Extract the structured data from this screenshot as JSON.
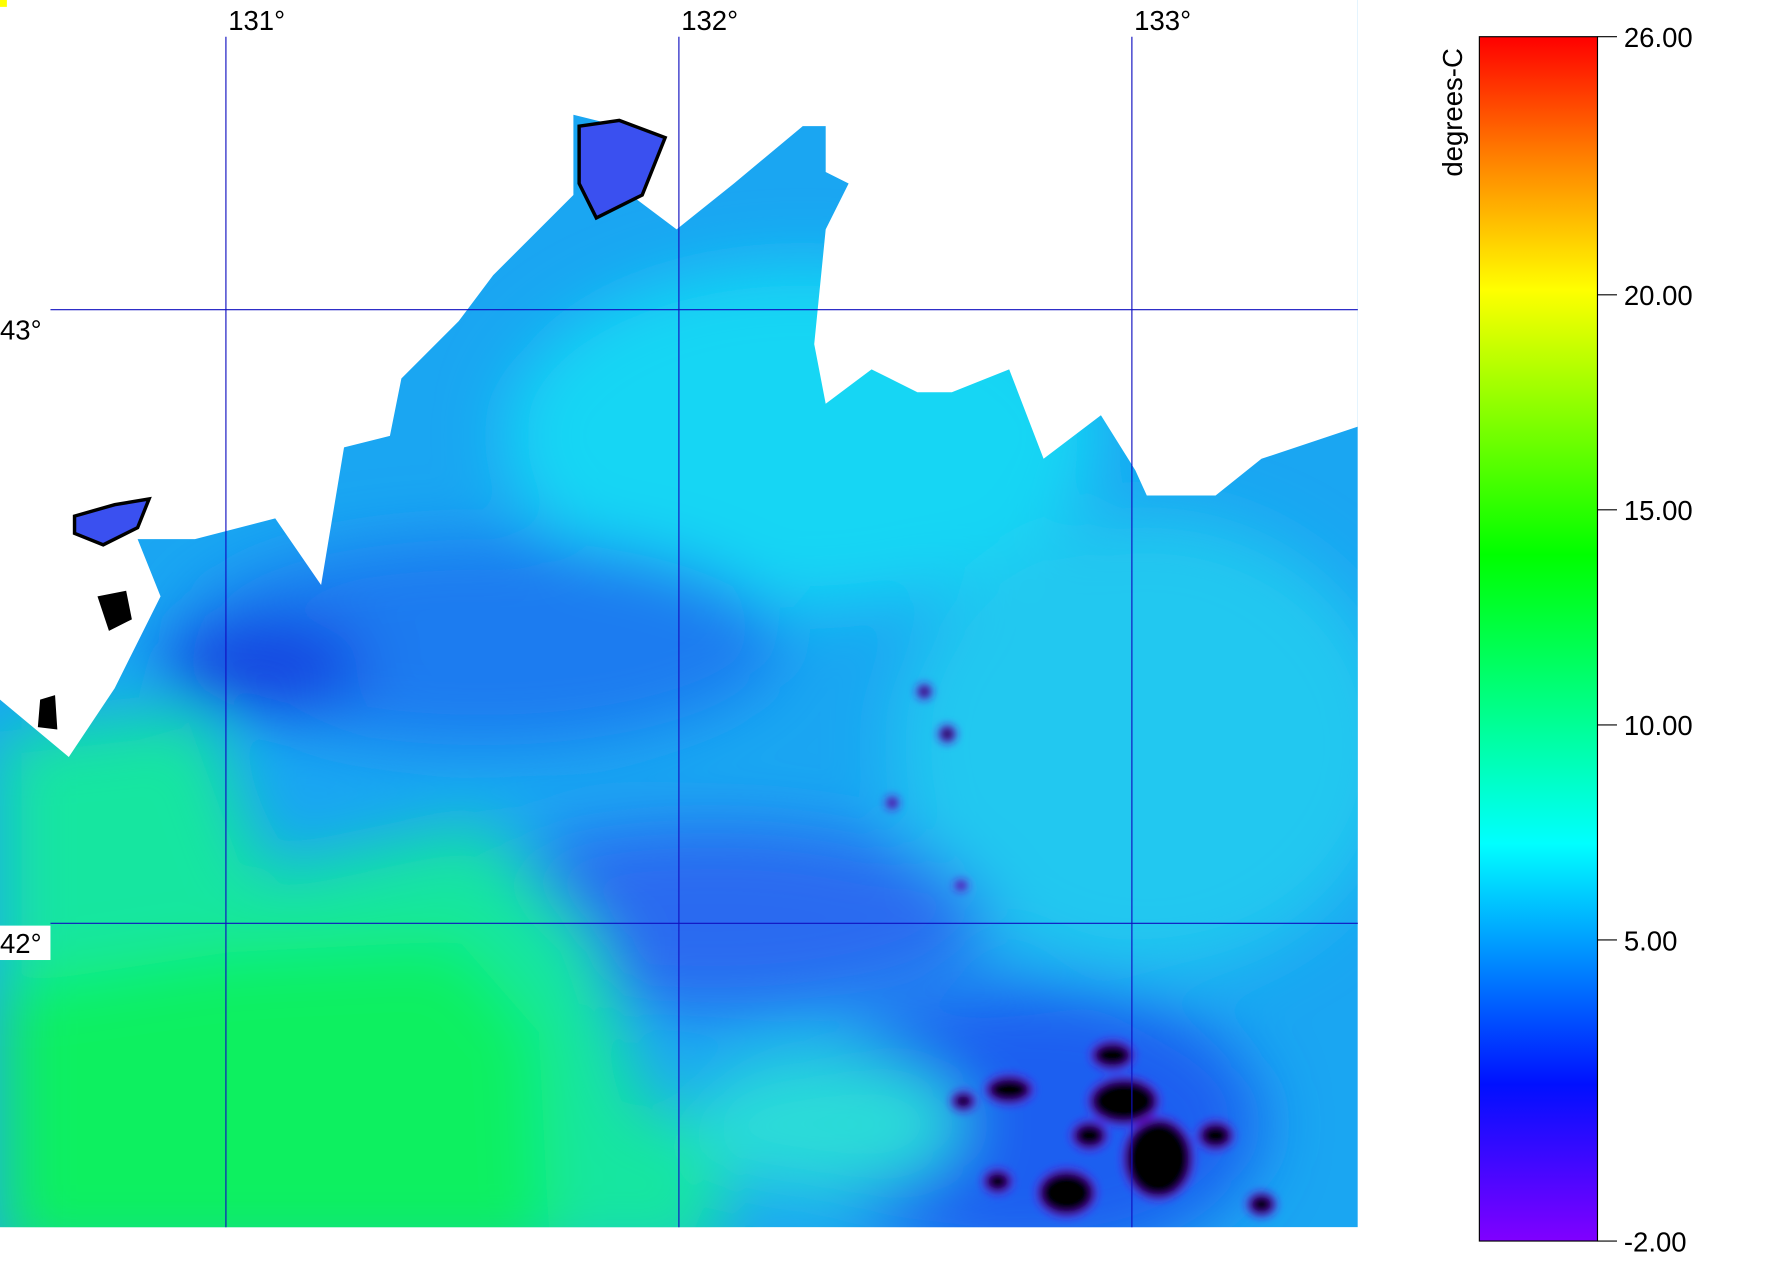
{
  "map": {
    "lon_ticks": [
      {
        "value": 131,
        "label": "131°"
      },
      {
        "value": 132,
        "label": "132°"
      },
      {
        "value": 133,
        "label": "133°"
      }
    ],
    "lat_ticks": [
      {
        "value": 43,
        "label": "43°"
      },
      {
        "value": 42,
        "label": "42°"
      }
    ]
  },
  "colorbar": {
    "label": "degrees-C",
    "range": [
      -2,
      26
    ],
    "ticks": [
      {
        "value": 26,
        "label": "26.00"
      },
      {
        "value": 20,
        "label": "20.00"
      },
      {
        "value": 15,
        "label": "15.00"
      },
      {
        "value": 10,
        "label": "10.00"
      },
      {
        "value": 5,
        "label": "5.00"
      },
      {
        "value": -2,
        "label": "-2.00"
      }
    ]
  }
}
